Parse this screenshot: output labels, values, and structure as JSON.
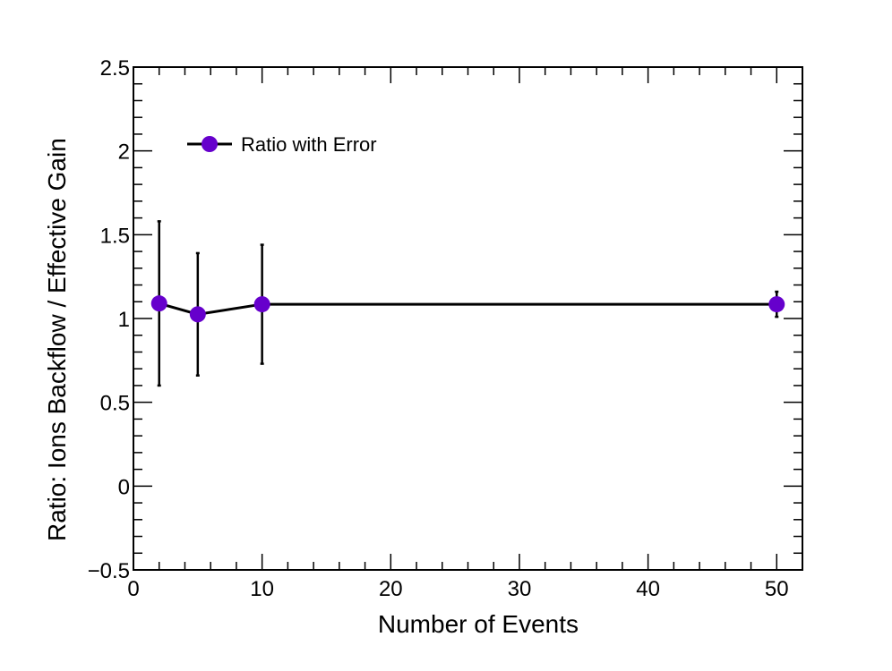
{
  "chart_data": {
    "type": "scatter",
    "xlabel": "Number of Events",
    "ylabel": "Ratio: Ions Backflow / Effective Gain",
    "xlim": [
      0,
      52
    ],
    "ylim": [
      -0.5,
      2.5
    ],
    "x_ticks": [
      0,
      10,
      20,
      30,
      40,
      50
    ],
    "x_tick_labels": [
      "0",
      "10",
      "20",
      "30",
      "40",
      "50"
    ],
    "y_ticks": [
      -0.5,
      0,
      0.5,
      1,
      1.5,
      2,
      2.5
    ],
    "y_tick_labels": [
      "−0.5",
      "0",
      "0.5",
      "1",
      "1.5",
      "2",
      "2.5"
    ],
    "grid": false,
    "legend": {
      "placement": "top-left",
      "entries": [
        "Ratio with Error"
      ]
    },
    "series": [
      {
        "name": "Ratio with Error",
        "color": "#6600cc",
        "line_color": "#000000",
        "marker": "circle",
        "x": [
          2,
          5,
          10,
          50
        ],
        "y": [
          1.09,
          1.025,
          1.085,
          1.085
        ],
        "yerr": [
          0.49,
          0.365,
          0.355,
          0.075
        ]
      }
    ]
  }
}
